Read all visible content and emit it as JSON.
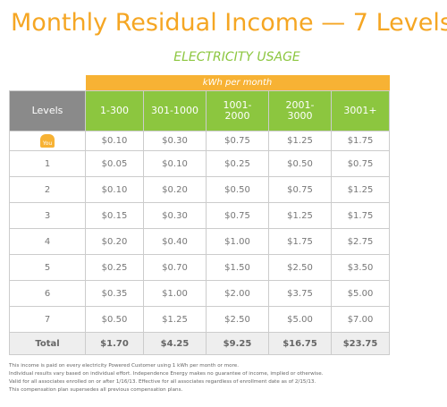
{
  "header": {
    "title": "Monthly Residual Income — 7 Levels",
    "subtitle": "ELECTRICITY USAGE"
  },
  "table": {
    "group_header": "kWh per month",
    "columns": [
      "Levels",
      "1-300",
      "301-1000",
      "1001-2000",
      "2001-3000",
      "3001+"
    ],
    "rows": [
      [
        "You",
        "$0.10",
        "$0.30",
        "$0.75",
        "$1.25",
        "$1.75"
      ],
      [
        "1",
        "$0.05",
        "$0.10",
        "$0.25",
        "$0.50",
        "$0.75"
      ],
      [
        "2",
        "$0.10",
        "$0.20",
        "$0.50",
        "$0.75",
        "$1.25"
      ],
      [
        "3",
        "$0.15",
        "$0.30",
        "$0.75",
        "$1.25",
        "$1.75"
      ],
      [
        "4",
        "$0.20",
        "$0.40",
        "$1.00",
        "$1.75",
        "$2.75"
      ],
      [
        "5",
        "$0.25",
        "$0.70",
        "$1.50",
        "$2.50",
        "$3.50"
      ],
      [
        "6",
        "$0.35",
        "$1.00",
        "$2.00",
        "$3.75",
        "$5.00"
      ],
      [
        "7",
        "$0.50",
        "$1.25",
        "$2.50",
        "$5.00",
        "$7.00"
      ]
    ],
    "total": [
      "Total",
      "$1.70",
      "$4.25",
      "$9.25",
      "$16.75",
      "$23.75"
    ]
  },
  "footnotes": [
    "This income is paid on every electricity Powered Customer using 1 kWh per month or more.",
    "Individual results vary based on individual effort. Independence Energy makes no guarantee of income, implied or otherwise.",
    "Valid for all associates enrolled on or after 1/16/13. Effective for all associates regardless of enrollment date as of 2/15/13.",
    "This compensation plan supersedes all previous compensation plans."
  ]
}
